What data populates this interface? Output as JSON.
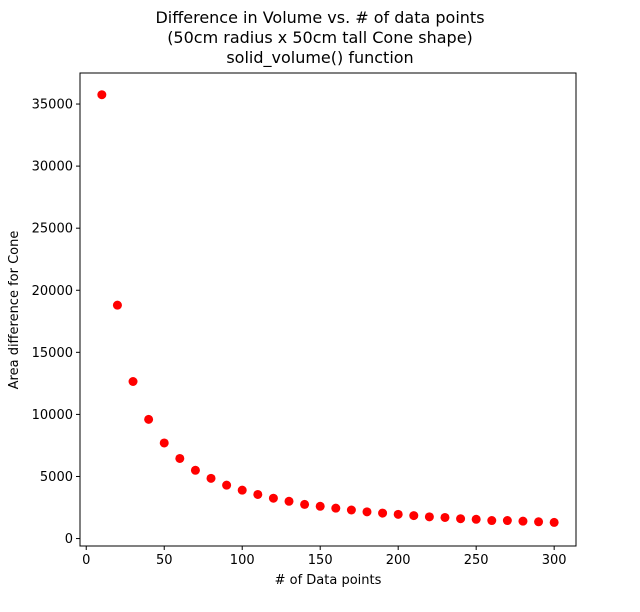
{
  "chart_data": {
    "type": "scatter",
    "title": "Difference in Volume vs. # of data points\n(50cm radius x 50cm tall Cone shape)\nsolid_volume() function",
    "title_lines": [
      "Difference in Volume vs. # of data points",
      "(50cm radius x 50cm tall Cone shape)",
      "solid_volume() function"
    ],
    "xlabel": "# of Data points",
    "ylabel": "Area difference for Cone",
    "xlim": [
      -4,
      314
    ],
    "ylim": [
      -600,
      37500
    ],
    "xticks": [
      0,
      50,
      100,
      150,
      200,
      250,
      300
    ],
    "yticks": [
      0,
      5000,
      10000,
      15000,
      20000,
      25000,
      30000,
      35000
    ],
    "grid": false,
    "marker_color": "#ff0000",
    "series": [
      {
        "x": [
          10,
          20,
          30,
          40,
          50,
          60,
          70,
          80,
          90,
          100,
          110,
          120,
          130,
          140,
          150,
          160,
          170,
          180,
          190,
          200,
          210,
          220,
          230,
          240,
          250,
          260,
          270,
          280,
          290,
          300
        ],
        "y": [
          35750,
          18800,
          12650,
          9600,
          7700,
          6450,
          5500,
          4850,
          4300,
          3900,
          3550,
          3250,
          3000,
          2750,
          2600,
          2450,
          2300,
          2150,
          2050,
          1950,
          1850,
          1750,
          1700,
          1600,
          1550,
          1450,
          1450,
          1400,
          1350,
          1300
        ]
      }
    ]
  }
}
